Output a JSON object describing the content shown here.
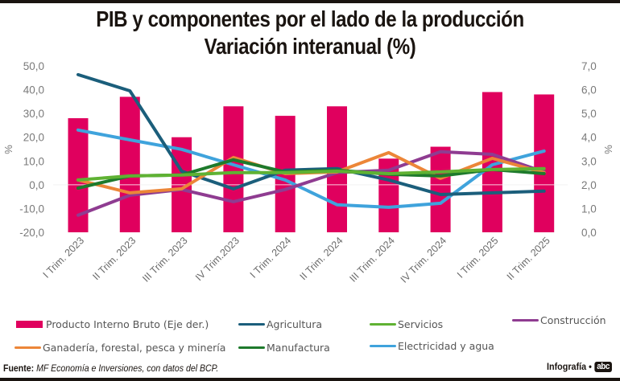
{
  "header": {
    "title_line1": "PIB y componentes por el lado de la producción",
    "title_line2": "Variación interanual (%)"
  },
  "footer": {
    "source_label": "Fuente:",
    "source_text": "MF Economía e Inversiones, con datos del BCP.",
    "credit_label": "Infografía •",
    "brand_logo": "abc"
  },
  "colors": {
    "pib": "#e0005e",
    "agricultura": "#1b5e7b",
    "ganaderia": "#ec8638",
    "manufactura": "#1e7a2c",
    "servicios": "#5fb233",
    "electricidad": "#3fa3dc",
    "construccion": "#8f3c91"
  },
  "chart_data": {
    "type": "bar+line",
    "title": "PIB y componentes por el lado de la producción — Variación interanual (%)",
    "categories": [
      "I Trim. 2023",
      "II Trim. 2023",
      "III Trim. 2023",
      "IV Trim.2023",
      "I Trim. 2024",
      "II Trim. 2024",
      "III Trim. 2024",
      "IV Trim. 2024",
      "I Trim. 2025",
      "II Trim. 2025"
    ],
    "left_axis": {
      "label": "%",
      "ylim": [
        -20,
        50
      ],
      "ticks": [
        "50,0",
        "40,0",
        "30,0",
        "20,0",
        "10,0",
        "0,0",
        "-10,0",
        "-20,0"
      ],
      "tick_values": [
        50,
        40,
        30,
        20,
        10,
        0,
        -10,
        -20
      ]
    },
    "right_axis": {
      "label": "%",
      "ylim": [
        0,
        7
      ],
      "ticks": [
        "7,0",
        "6,0",
        "5,0",
        "4,0",
        "3,0",
        "2,0",
        "1,0",
        "0,0"
      ],
      "tick_values": [
        7,
        6,
        5,
        4,
        3,
        2,
        1,
        0
      ]
    },
    "bars": {
      "name": "Producto Interno Bruto (Eje der.)",
      "axis": "right",
      "values": [
        4.8,
        5.7,
        4.0,
        5.3,
        4.9,
        5.3,
        3.1,
        3.6,
        5.9,
        5.8
      ]
    },
    "series": [
      {
        "key": "agricultura",
        "name": "Agricultura",
        "axis": "left",
        "values": [
          46.3,
          39.5,
          5.7,
          -1.7,
          6.1,
          6.8,
          2.0,
          -4.1,
          -3.4,
          -2.7
        ]
      },
      {
        "key": "ganaderia",
        "name": "Ganadería, forestal, pesca y minería",
        "axis": "left",
        "values": [
          2.0,
          -3.4,
          -1.7,
          11.5,
          4.7,
          5.4,
          13.5,
          2.7,
          11.1,
          5.1
        ]
      },
      {
        "key": "manufactura",
        "name": "Manufactura",
        "axis": "left",
        "values": [
          -1.4,
          3.7,
          4.1,
          10.5,
          5.4,
          6.1,
          4.4,
          3.7,
          6.4,
          4.7
        ]
      },
      {
        "key": "servicios",
        "name": "Servicios",
        "axis": "left",
        "values": [
          2.0,
          3.7,
          4.1,
          5.1,
          5.1,
          5.7,
          4.7,
          5.4,
          6.4,
          6.8
        ]
      },
      {
        "key": "electricidad",
        "name": "Electricidad y agua",
        "axis": "left",
        "values": [
          23.0,
          18.9,
          14.9,
          8.4,
          2.0,
          -8.4,
          -9.5,
          -7.8,
          8.4,
          14.2
        ]
      },
      {
        "key": "construccion",
        "name": "Construcción",
        "axis": "left",
        "values": [
          -12.8,
          -4.4,
          -2.0,
          -7.1,
          -2.0,
          5.1,
          6.1,
          13.9,
          12.8,
          5.4
        ]
      }
    ],
    "legend": {
      "placement": "bottom",
      "items": [
        {
          "key": "pib",
          "label": "Producto Interno Bruto (Eje der.)",
          "kind": "bar"
        },
        {
          "key": "agricultura",
          "label": "Agricultura",
          "kind": "line"
        },
        {
          "key": "servicios",
          "label": "Servicios",
          "kind": "line"
        },
        {
          "key": "construccion",
          "label": "Construcción",
          "kind": "line"
        },
        {
          "key": "ganaderia",
          "label": "Ganadería, forestal, pesca y minería",
          "kind": "line"
        },
        {
          "key": "manufactura",
          "label": "Manufactura",
          "kind": "line"
        },
        {
          "key": "electricidad",
          "label": "Electricidad y agua",
          "kind": "line"
        }
      ]
    },
    "grid": false,
    "zero_line": true
  }
}
